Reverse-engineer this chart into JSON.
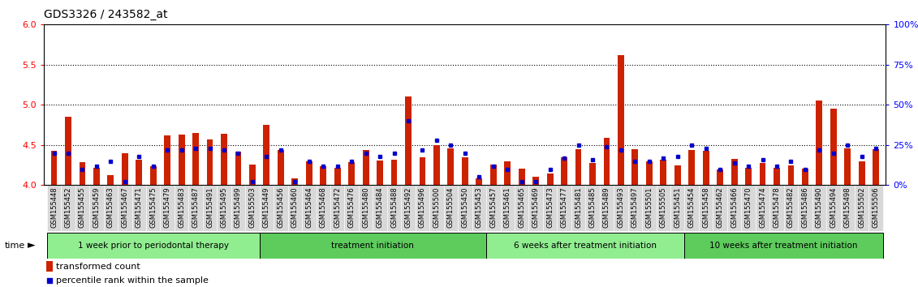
{
  "title": "GDS3326 / 243582_at",
  "samples": [
    "GSM155448",
    "GSM155452",
    "GSM155455",
    "GSM155459",
    "GSM155463",
    "GSM155467",
    "GSM155471",
    "GSM155475",
    "GSM155479",
    "GSM155483",
    "GSM155487",
    "GSM155491",
    "GSM155495",
    "GSM155499",
    "GSM155503",
    "GSM155449",
    "GSM155456",
    "GSM155460",
    "GSM155464",
    "GSM155468",
    "GSM155472",
    "GSM155476",
    "GSM155480",
    "GSM155484",
    "GSM155488",
    "GSM155492",
    "GSM155496",
    "GSM155500",
    "GSM155504",
    "GSM155450",
    "GSM155453",
    "GSM155457",
    "GSM155461",
    "GSM155465",
    "GSM155469",
    "GSM155473",
    "GSM155477",
    "GSM155481",
    "GSM155485",
    "GSM155489",
    "GSM155493",
    "GSM155497",
    "GSM155501",
    "GSM155505",
    "GSM155451",
    "GSM155454",
    "GSM155458",
    "GSM155462",
    "GSM155466",
    "GSM155470",
    "GSM155474",
    "GSM155478",
    "GSM155482",
    "GSM155486",
    "GSM155490",
    "GSM155494",
    "GSM155498",
    "GSM155502",
    "GSM155506"
  ],
  "red_values": [
    4.43,
    4.85,
    4.29,
    4.22,
    4.12,
    4.4,
    4.32,
    4.24,
    4.62,
    4.63,
    4.65,
    4.57,
    4.64,
    4.42,
    4.26,
    4.75,
    4.44,
    4.08,
    4.3,
    4.24,
    4.22,
    4.29,
    4.44,
    4.31,
    4.32,
    5.1,
    4.35,
    4.5,
    4.46,
    4.35,
    4.08,
    4.26,
    4.3,
    4.21,
    4.1,
    4.14,
    4.35,
    4.45,
    4.28,
    4.59,
    5.62,
    4.45,
    4.3,
    4.32,
    4.25,
    4.44,
    4.43,
    4.2,
    4.33,
    4.22,
    4.28,
    4.22,
    4.25,
    4.21,
    5.05,
    4.95,
    4.46,
    4.3,
    4.45
  ],
  "blue_percentiles": [
    20,
    20,
    10,
    12,
    15,
    2,
    18,
    12,
    22,
    22,
    23,
    23,
    22,
    20,
    2,
    18,
    22,
    2,
    15,
    12,
    12,
    15,
    20,
    18,
    20,
    40,
    22,
    28,
    25,
    20,
    5,
    12,
    10,
    2,
    2,
    10,
    17,
    25,
    16,
    24,
    22,
    15,
    15,
    17,
    18,
    25,
    23,
    10,
    14,
    12,
    16,
    12,
    15,
    10,
    22,
    20,
    25,
    18,
    23
  ],
  "group_boundaries": [
    0,
    15,
    31,
    45,
    59
  ],
  "group_labels": [
    "1 week prior to periodontal therapy",
    "treatment initiation",
    "6 weeks after treatment initiation",
    "10 weeks after treatment initiation"
  ],
  "ylim_left": [
    4.0,
    6.0
  ],
  "ylim_right": [
    0,
    100
  ],
  "yticks_left": [
    4.0,
    4.5,
    5.0,
    5.5,
    6.0
  ],
  "yticks_right": [
    0,
    25,
    50,
    75,
    100
  ],
  "ytick_labels_right": [
    "0%",
    "25%",
    "50%",
    "75%",
    "100%"
  ],
  "bar_color": "#CC2200",
  "dot_color": "#0000CC",
  "grp_color_light": "#90EE90",
  "grp_color_dark": "#3CB371",
  "title_fontsize": 10,
  "tick_fontsize": 6,
  "label_fontsize": 8
}
